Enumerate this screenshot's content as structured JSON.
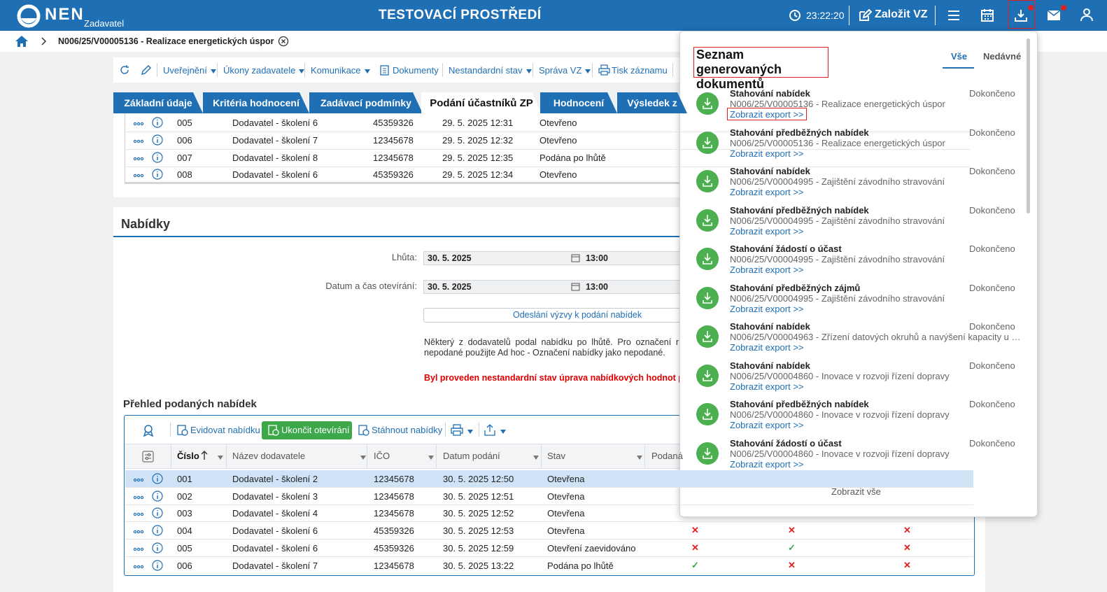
{
  "header": {
    "logo": "NEN",
    "role": "Zadavatel",
    "environment": "TESTOVACÍ PROSTŘEDÍ",
    "time": "23:22:20",
    "create_button": "Založit VZ"
  },
  "breadcrumb": {
    "title": "N006/25/V00005136 - Realizace energetických úspor"
  },
  "toolbar": {
    "items": [
      {
        "label": "Uveřejnění",
        "dropdown": true
      },
      {
        "label": "Úkony zadavatele",
        "dropdown": true
      },
      {
        "label": "Komunikace",
        "dropdown": true
      },
      {
        "label": "Dokumenty",
        "dropdown": false
      },
      {
        "label": "Nestandardní stav",
        "dropdown": true
      },
      {
        "label": "Správa VZ",
        "dropdown": true
      },
      {
        "label": "Tisk záznamu",
        "dropdown": false
      }
    ]
  },
  "tabs": {
    "items": [
      "Základní údaje",
      "Kritéria hodnocení",
      "Zadávací podmínky",
      "Podání účastníků ZP",
      "Hodnocení",
      "Výsledek z"
    ],
    "active": "Podání účastníků ZP"
  },
  "submissions": {
    "rows": [
      [
        "005",
        "Dodavatel - školení 6",
        "45359326",
        "29. 5. 2025 12:31",
        "Otevřeno"
      ],
      [
        "006",
        "Dodavatel - školení 7",
        "12345678",
        "29. 5. 2025 12:32",
        "Otevřeno"
      ],
      [
        "007",
        "Dodavatel - školení 8",
        "12345678",
        "29. 5. 2025 12:35",
        "Podána po lhůtě"
      ],
      [
        "008",
        "Dodavatel - školení 6",
        "45359326",
        "29. 5. 2025 12:34",
        "Otevřeno"
      ]
    ]
  },
  "offers": {
    "title": "Nabídky",
    "deadline_label": "Lhůta:",
    "deadline_date": "30. 5. 2025",
    "deadline_time": "13:00",
    "opening_label": "Datum a čas otevírání:",
    "opening_date": "30. 5. 2025",
    "opening_time": "13:00",
    "invite_button": "Odeslání výzvy k podání nabídek",
    "note_lines": [
      "Některý z dodavatelů podal nabídku po lhůtě. Pro označení r",
      "nepodané použijte Ad hoc - Označení nabídky jako nepodané."
    ],
    "warning": "Byl proveden nestandardní stav úprava nabídkových hodnot podá"
  },
  "overview": {
    "title": "Přehled podaných nabídek",
    "buttons": [
      "Evidovat nabídku",
      "Ukončit otevírání",
      "Stáhnout nabídky"
    ],
    "columns": [
      "Číslo",
      "Název dodavatele",
      "IČO",
      "Datum podání",
      "Stav",
      "Podaná"
    ],
    "rows": [
      {
        "cells": [
          "001",
          "Dodavatel - školení 2",
          "12345678",
          "30. 5. 2025 12:50",
          "Otevřena"
        ],
        "selected": true
      },
      {
        "cells": [
          "002",
          "Dodavatel - školení 3",
          "12345678",
          "30. 5. 2025 12:51",
          "Otevřena"
        ]
      },
      {
        "cells": [
          "003",
          "Dodavatel - školení 4",
          "12345678",
          "30. 5. 2025 12:52",
          "Otevřena"
        ]
      },
      {
        "cells": [
          "004",
          "Dodavatel - školení 6",
          "45359326",
          "30. 5. 2025 12:53",
          "Otevřena"
        ],
        "flags": [
          "✕",
          "✕",
          "✕"
        ]
      },
      {
        "cells": [
          "005",
          "Dodavatel - školení 6",
          "45359326",
          "30. 5. 2025 12:59",
          "Otevření zaevidováno"
        ],
        "flags": [
          "✕",
          "✓",
          "✕"
        ]
      },
      {
        "cells": [
          "006",
          "Dodavatel - školení 7",
          "12345678",
          "30. 5. 2025 13:22",
          "Podána po lhůtě"
        ],
        "flags": [
          "✓",
          "✕",
          "✕"
        ]
      }
    ]
  },
  "panel": {
    "title": "Seznam generovaných dokumentů",
    "tabs": [
      "Vše",
      "Nedávné"
    ],
    "items": [
      {
        "title": "Stahování nabídek",
        "subtitle": "N006/25/V00005136 - Realizace energetických úspor",
        "link": "Zobrazit export >>",
        "status": "Dokončeno",
        "highlighted": true
      },
      {
        "title": "Stahování předběžných nabídek",
        "subtitle": "N006/25/V00005136 - Realizace energetických úspor",
        "link": "Zobrazit export >>",
        "status": "Dokončeno"
      },
      {
        "title": "Stahování nabídek",
        "subtitle": "N006/25/V00004995 - Zajištění závodního stravování",
        "link": "Zobrazit export >>",
        "status": "Dokončeno"
      },
      {
        "title": "Stahování předběžných nabídek",
        "subtitle": "N006/25/V00004995 - Zajištění závodního stravování",
        "link": "Zobrazit export >>",
        "status": "Dokončeno"
      },
      {
        "title": "Stahování žádostí o účast",
        "subtitle": "N006/25/V00004995 - Zajištění závodního stravování",
        "link": "Zobrazit export >>",
        "status": "Dokončeno"
      },
      {
        "title": "Stahování předběžných zájmů",
        "subtitle": "N006/25/V00004995 - Zajištění závodního stravování",
        "link": "Zobrazit export >>",
        "status": "Dokončeno"
      },
      {
        "title": "Stahování nabídek",
        "subtitle": "N006/25/V00004963 - Zřízení datových okruhů a navýšení kapacity u …",
        "link": "Zobrazit export >>",
        "status": "Dokončeno"
      },
      {
        "title": "Stahování nabídek",
        "subtitle": "N006/25/V00004860 - Inovace v rozvoji řízení dopravy",
        "link": "Zobrazit export >>",
        "status": "Dokončeno"
      },
      {
        "title": "Stahování předběžných nabídek",
        "subtitle": "N006/25/V00004860 - Inovace v rozvoji řízení dopravy",
        "link": "Zobrazit export >>",
        "status": "Dokončeno"
      },
      {
        "title": "Stahování žádostí o účast",
        "subtitle": "N006/25/V00004860 - Inovace v rozvoji řízení dopravy",
        "link": "Zobrazit export >>",
        "status": "Dokončeno"
      }
    ],
    "footer": "Zobrazit vše"
  }
}
